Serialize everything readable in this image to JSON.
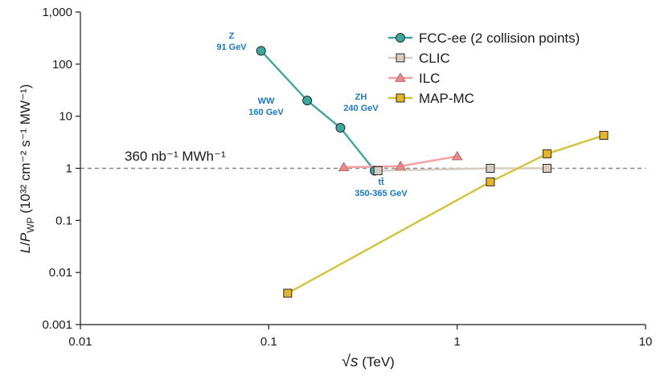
{
  "chart_data": {
    "type": "line",
    "x_scale": "log",
    "y_scale": "log",
    "xlim": [
      0.01,
      10
    ],
    "ylim": [
      0.001,
      1000
    ],
    "x_ticks": [
      "0.01",
      "0.1",
      "1",
      "10"
    ],
    "y_ticks": [
      "0.001",
      "0.01",
      "0.1",
      "1",
      "10",
      "100",
      "1,000"
    ],
    "xlabel": {
      "prefix": "√",
      "var": "s",
      "unit": " (TeV)"
    },
    "ylabel": {
      "main": "L",
      "slash": "/",
      "p": "P",
      "p_sub": "WP",
      "units": " (10³² cm⁻² s⁻¹ MW⁻¹)"
    },
    "reference_line": {
      "y": 1,
      "label": "360 nb⁻¹ MWh⁻¹",
      "color": "#888888"
    },
    "legend": {
      "position": "top-right"
    },
    "series": [
      {
        "name": "FCC-ee (2 collision points)",
        "marker": "circle",
        "color": "#3aa89a",
        "line_color": "#3aa89a",
        "x": [
          0.091,
          0.16,
          0.24,
          0.365
        ],
        "y": [
          180,
          20,
          6,
          0.9
        ]
      },
      {
        "name": "CLIC",
        "marker": "square",
        "color": "#d8ccc0",
        "line_color": "#d8ccc0",
        "x": [
          0.38,
          1.5,
          3.0
        ],
        "y": [
          0.9,
          1.0,
          1.0
        ]
      },
      {
        "name": "ILC",
        "marker": "triangle",
        "color": "#f08a8a",
        "line_color": "#f4a0a0",
        "x": [
          0.25,
          0.5,
          1.0
        ],
        "y": [
          1.05,
          1.1,
          1.7
        ]
      },
      {
        "name": "MAP-MC",
        "marker": "square",
        "color": "#e5b428",
        "line_color": "#d4c33a",
        "x": [
          0.126,
          1.5,
          3.0,
          6.0
        ],
        "y": [
          0.004,
          0.55,
          1.9,
          4.3
        ]
      }
    ],
    "annotations": [
      {
        "lines": [
          "Z",
          "91 GeV"
        ]
      },
      {
        "lines": [
          "WW",
          "160 GeV"
        ]
      },
      {
        "lines": [
          "ZH",
          "240 GeV"
        ]
      },
      {
        "lines": [
          "tt̄",
          "350-365 GeV"
        ]
      }
    ]
  }
}
